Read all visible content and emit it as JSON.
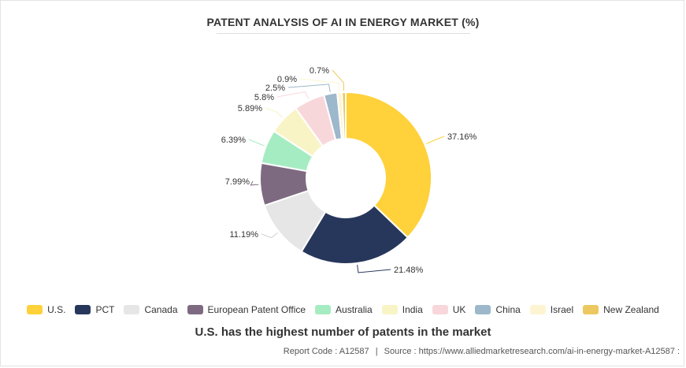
{
  "chart_data": {
    "type": "pie",
    "variant": "donut",
    "title": "PATENT ANALYSIS OF AI IN ENERGY MARKET (%)",
    "categories": [
      "U.S.",
      "PCT",
      "Canada",
      "European Patent Office",
      "Australia",
      "India",
      "UK",
      "China",
      "Israel",
      "New Zealand"
    ],
    "values": [
      37.16,
      21.48,
      11.19,
      7.99,
      6.39,
      5.89,
      5.8,
      2.5,
      0.9,
      0.7
    ],
    "labels": [
      "37.16%",
      "21.48%",
      "11.19%",
      "7.99%",
      "6.39%",
      "5.89%",
      "5.8%",
      "2.5%",
      "0.9%",
      "0.7%"
    ],
    "colors": [
      "#FFD13A",
      "#27375B",
      "#E6E6E6",
      "#7D6A80",
      "#A6ECC2",
      "#F8F4C6",
      "#F8D7DB",
      "#9DB7CB",
      "#FDF5D2",
      "#EDC860"
    ],
    "legend_position": "bottom"
  },
  "subtitle": "U.S. has the highest number of patents in the market",
  "source": {
    "report_code": "Report Code : A12587",
    "separator": "|",
    "source_text": "Source : https://www.alliedmarketresearch.com/ai-in-energy-market-A12587 :"
  }
}
